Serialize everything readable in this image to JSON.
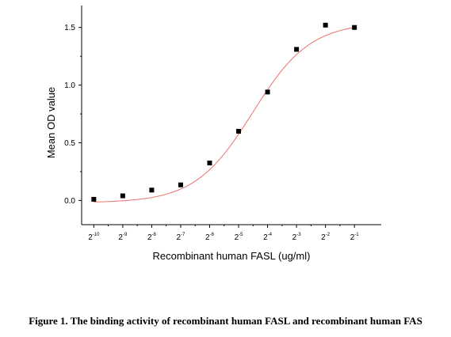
{
  "chart_data": {
    "type": "scatter",
    "xlabel": "Recombinant human FASL (ug/ml)",
    "ylabel": "Mean OD value",
    "x_scale": "log2",
    "x_ticks": [
      {
        "value": 0.0009765625,
        "base": "2",
        "exp": "-10"
      },
      {
        "value": 0.001953125,
        "base": "2",
        "exp": "-9"
      },
      {
        "value": 0.00390625,
        "base": "2",
        "exp": "-8"
      },
      {
        "value": 0.0078125,
        "base": "2",
        "exp": "-7"
      },
      {
        "value": 0.015625,
        "base": "2",
        "exp": "-6"
      },
      {
        "value": 0.03125,
        "base": "2",
        "exp": "-5"
      },
      {
        "value": 0.0625,
        "base": "2",
        "exp": "-4"
      },
      {
        "value": 0.125,
        "base": "2",
        "exp": "-3"
      },
      {
        "value": 0.25,
        "base": "2",
        "exp": "-2"
      },
      {
        "value": 0.5,
        "base": "2",
        "exp": "-1"
      }
    ],
    "y_ticks": [
      "0.0",
      "0.5",
      "1.0",
      "1.5"
    ],
    "xlim": [
      0.00073,
      0.95
    ],
    "ylim": [
      -0.21,
      1.69
    ],
    "x": [
      0.0009765625,
      0.001953125,
      0.00390625,
      0.0078125,
      0.015625,
      0.03125,
      0.0625,
      0.125,
      0.25,
      0.5
    ],
    "y": [
      0.01,
      0.04,
      0.09,
      0.135,
      0.325,
      0.6,
      0.94,
      1.31,
      1.52,
      1.5
    ],
    "marker_color": "#000000",
    "fit_color": "#e8736f",
    "fit": {
      "model": "4PL",
      "bottom": -0.02,
      "top": 1.545,
      "ec50": 0.0438,
      "hill": 1.45
    },
    "grid": false
  },
  "caption": "Figure 1. The binding activity of recombinant human FASL and recombinant human FAS"
}
